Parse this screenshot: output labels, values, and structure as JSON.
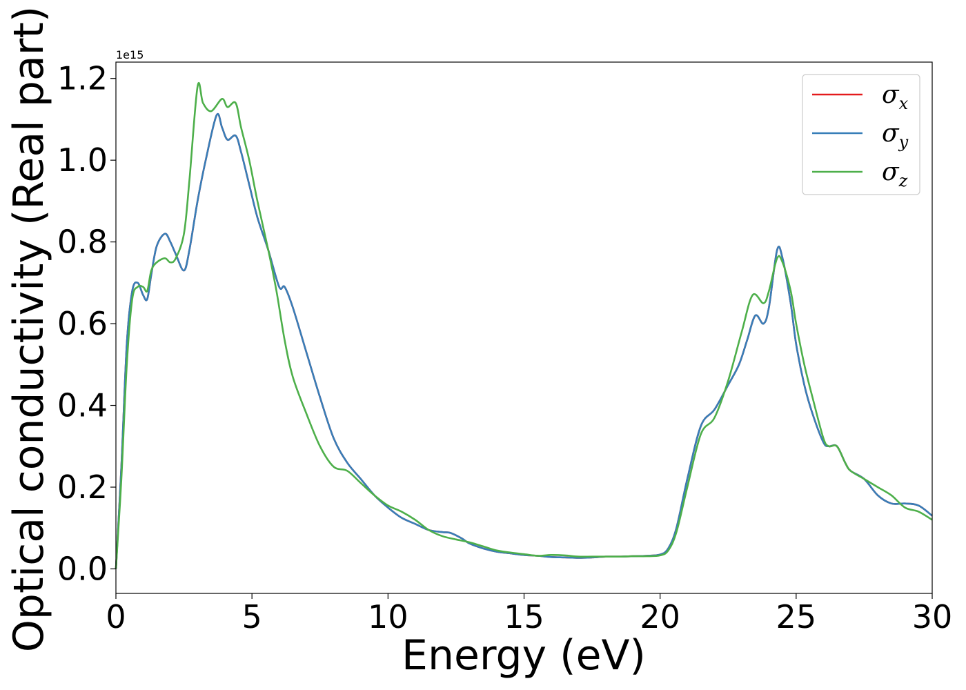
{
  "chart_data": {
    "type": "line",
    "title": "",
    "xlabel": "Energy (eV)",
    "ylabel": "Optical conductivity (Real part)",
    "y_offset_text": "1e15",
    "xlim": [
      0,
      30
    ],
    "ylim": [
      -0.06,
      1.24
    ],
    "y_scale_factor": 1000000000000000.0,
    "xticks": [
      0,
      5,
      10,
      15,
      20,
      25,
      30
    ],
    "xtick_labels": [
      "0",
      "5",
      "10",
      "15",
      "20",
      "25",
      "30"
    ],
    "yticks": [
      0.0,
      0.2,
      0.4,
      0.6,
      0.8,
      1.0,
      1.2
    ],
    "ytick_labels": [
      "0.0",
      "0.2",
      "0.4",
      "0.6",
      "0.8",
      "1.0",
      "1.2"
    ],
    "grid": false,
    "legend_position": "top-right",
    "series": [
      {
        "name": "σx",
        "symbol": "σ",
        "subscript": "x",
        "color": "#e41a1c",
        "x": [
          0,
          0.2,
          0.4,
          0.6,
          0.8,
          1.0,
          1.15,
          1.3,
          1.5,
          1.8,
          2.0,
          2.2,
          2.5,
          2.7,
          3.0,
          3.3,
          3.7,
          3.9,
          4.1,
          4.4,
          4.6,
          4.9,
          5.2,
          5.6,
          6.0,
          6.2,
          6.5,
          7.0,
          7.5,
          8.0,
          8.5,
          9.0,
          9.5,
          10.0,
          10.5,
          11.0,
          11.5,
          12.0,
          12.3,
          12.7,
          13.0,
          13.5,
          14.0,
          14.5,
          15.0,
          15.5,
          16.0,
          16.5,
          17.0,
          17.5,
          18.0,
          18.5,
          19.0,
          19.5,
          20.0,
          20.3,
          20.6,
          21.0,
          21.5,
          22.0,
          22.5,
          22.9,
          23.2,
          23.5,
          23.8,
          24.0,
          24.3,
          24.5,
          24.8,
          25.0,
          25.3,
          25.6,
          26.0,
          26.2,
          26.5,
          26.8,
          27.0,
          27.5,
          28.0,
          28.5,
          29.0,
          29.5,
          30.0
        ],
        "values": [
          0.0,
          0.25,
          0.55,
          0.68,
          0.7,
          0.67,
          0.66,
          0.72,
          0.79,
          0.82,
          0.8,
          0.77,
          0.73,
          0.78,
          0.9,
          1.0,
          1.11,
          1.08,
          1.05,
          1.06,
          1.02,
          0.94,
          0.86,
          0.78,
          0.69,
          0.69,
          0.64,
          0.53,
          0.42,
          0.32,
          0.26,
          0.22,
          0.18,
          0.15,
          0.125,
          0.11,
          0.095,
          0.09,
          0.088,
          0.075,
          0.062,
          0.05,
          0.042,
          0.038,
          0.034,
          0.032,
          0.029,
          0.028,
          0.027,
          0.028,
          0.03,
          0.03,
          0.031,
          0.032,
          0.035,
          0.05,
          0.1,
          0.22,
          0.35,
          0.39,
          0.45,
          0.5,
          0.56,
          0.62,
          0.6,
          0.64,
          0.78,
          0.76,
          0.65,
          0.55,
          0.45,
          0.38,
          0.31,
          0.3,
          0.3,
          0.26,
          0.24,
          0.22,
          0.18,
          0.16,
          0.16,
          0.155,
          0.13
        ]
      },
      {
        "name": "σy",
        "symbol": "σ",
        "subscript": "y",
        "color": "#377eb8",
        "x": [
          0,
          0.2,
          0.4,
          0.6,
          0.8,
          1.0,
          1.15,
          1.3,
          1.5,
          1.8,
          2.0,
          2.2,
          2.5,
          2.7,
          3.0,
          3.3,
          3.7,
          3.9,
          4.1,
          4.4,
          4.6,
          4.9,
          5.2,
          5.6,
          6.0,
          6.2,
          6.5,
          7.0,
          7.5,
          8.0,
          8.5,
          9.0,
          9.5,
          10.0,
          10.5,
          11.0,
          11.5,
          12.0,
          12.3,
          12.7,
          13.0,
          13.5,
          14.0,
          14.5,
          15.0,
          15.5,
          16.0,
          16.5,
          17.0,
          17.5,
          18.0,
          18.5,
          19.0,
          19.5,
          20.0,
          20.3,
          20.6,
          21.0,
          21.5,
          22.0,
          22.5,
          22.9,
          23.2,
          23.5,
          23.8,
          24.0,
          24.3,
          24.5,
          24.8,
          25.0,
          25.3,
          25.6,
          26.0,
          26.2,
          26.5,
          26.8,
          27.0,
          27.5,
          28.0,
          28.5,
          29.0,
          29.5,
          30.0
        ],
        "values": [
          0.0,
          0.25,
          0.55,
          0.68,
          0.7,
          0.67,
          0.66,
          0.72,
          0.79,
          0.82,
          0.8,
          0.77,
          0.73,
          0.78,
          0.9,
          1.0,
          1.11,
          1.08,
          1.05,
          1.06,
          1.02,
          0.94,
          0.86,
          0.78,
          0.69,
          0.69,
          0.64,
          0.53,
          0.42,
          0.32,
          0.26,
          0.22,
          0.18,
          0.15,
          0.125,
          0.11,
          0.095,
          0.09,
          0.088,
          0.075,
          0.062,
          0.05,
          0.042,
          0.038,
          0.034,
          0.032,
          0.029,
          0.028,
          0.027,
          0.028,
          0.03,
          0.03,
          0.031,
          0.032,
          0.035,
          0.05,
          0.1,
          0.22,
          0.35,
          0.39,
          0.45,
          0.5,
          0.56,
          0.62,
          0.6,
          0.64,
          0.78,
          0.76,
          0.65,
          0.55,
          0.45,
          0.38,
          0.31,
          0.3,
          0.3,
          0.26,
          0.24,
          0.22,
          0.18,
          0.16,
          0.16,
          0.155,
          0.13
        ]
      },
      {
        "name": "σz",
        "symbol": "σ",
        "subscript": "z",
        "color": "#4daf4a",
        "x": [
          0,
          0.2,
          0.4,
          0.6,
          0.8,
          1.0,
          1.15,
          1.3,
          1.5,
          1.8,
          2.0,
          2.2,
          2.5,
          2.7,
          3.0,
          3.2,
          3.5,
          3.9,
          4.1,
          4.4,
          4.6,
          4.9,
          5.2,
          5.6,
          5.9,
          6.2,
          6.5,
          7.0,
          7.5,
          8.0,
          8.5,
          9.0,
          9.5,
          10.0,
          10.5,
          11.0,
          11.5,
          12.0,
          12.5,
          13.0,
          13.5,
          14.0,
          14.5,
          15.0,
          15.5,
          16.0,
          16.5,
          17.0,
          17.5,
          18.0,
          18.5,
          19.0,
          19.5,
          20.0,
          20.3,
          20.6,
          21.0,
          21.5,
          22.0,
          22.5,
          23.0,
          23.4,
          23.8,
          24.0,
          24.3,
          24.5,
          24.8,
          25.0,
          25.3,
          25.6,
          26.0,
          26.2,
          26.5,
          26.8,
          27.0,
          27.5,
          28.0,
          28.5,
          29.0,
          29.5,
          30.0
        ],
        "values": [
          0.0,
          0.22,
          0.5,
          0.66,
          0.69,
          0.69,
          0.68,
          0.73,
          0.75,
          0.76,
          0.75,
          0.76,
          0.82,
          0.95,
          1.18,
          1.14,
          1.12,
          1.15,
          1.13,
          1.14,
          1.08,
          1.0,
          0.9,
          0.78,
          0.68,
          0.56,
          0.47,
          0.38,
          0.3,
          0.25,
          0.24,
          0.21,
          0.18,
          0.155,
          0.14,
          0.12,
          0.095,
          0.08,
          0.072,
          0.065,
          0.055,
          0.045,
          0.04,
          0.036,
          0.032,
          0.034,
          0.033,
          0.03,
          0.03,
          0.03,
          0.03,
          0.031,
          0.031,
          0.033,
          0.045,
          0.09,
          0.2,
          0.33,
          0.37,
          0.46,
          0.58,
          0.67,
          0.65,
          0.68,
          0.76,
          0.75,
          0.68,
          0.6,
          0.5,
          0.42,
          0.32,
          0.3,
          0.3,
          0.26,
          0.24,
          0.22,
          0.2,
          0.18,
          0.15,
          0.14,
          0.12
        ]
      }
    ]
  }
}
